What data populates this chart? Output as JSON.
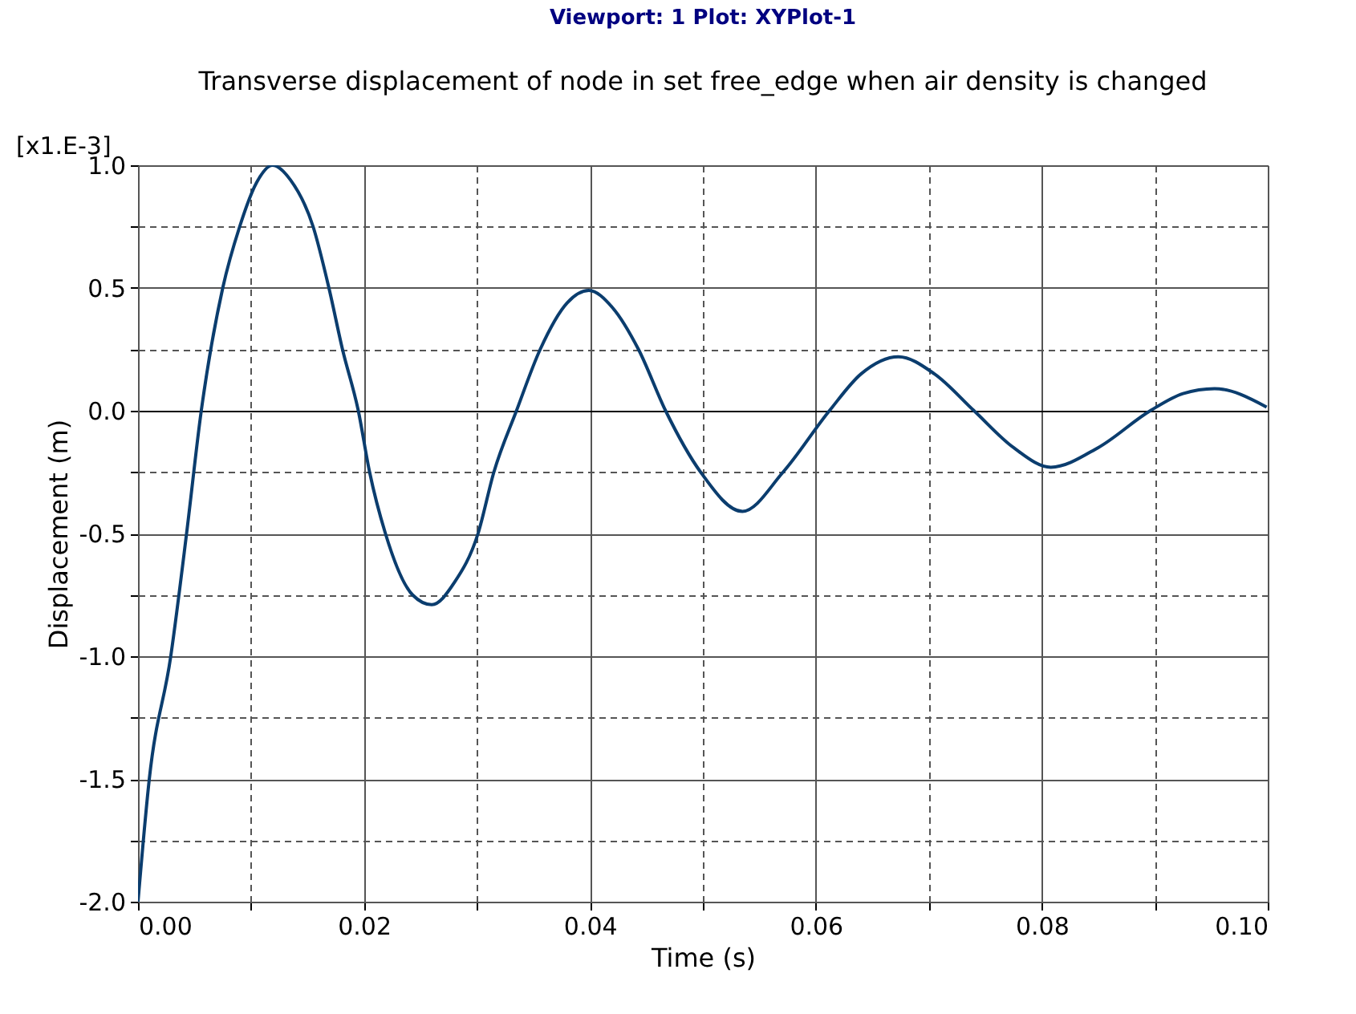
{
  "chart_data": {
    "type": "line",
    "title": "Transverse displacement of node in set free_edge when air density is changed",
    "xlabel": "Time (s)",
    "ylabel": "Displacement (m)",
    "annotations": [
      "Viewport: 1    Plot: XYPlot-1",
      "[x1.E-3]"
    ],
    "series": [
      {
        "color": "#0b3d6e",
        "x": [
          0,
          0.001,
          0.0029,
          0.0043,
          0.0056,
          0.0075,
          0.009,
          0.0105,
          0.0119,
          0.0135,
          0.0155,
          0.0169,
          0.0181,
          0.0195,
          0.0205,
          0.0219,
          0.0243,
          0.026,
          0.028,
          0.0301,
          0.0315,
          0.0335,
          0.0356,
          0.038,
          0.0399,
          0.042,
          0.0443,
          0.0467,
          0.0498,
          0.0535,
          0.0571,
          0.0612,
          0.064,
          0.0673,
          0.0705,
          0.074,
          0.0775,
          0.0808,
          0.085,
          0.0896,
          0.0925,
          0.0953,
          0.0999
        ],
        "values": [
          -2.0,
          -1.5,
          -1.0,
          -0.5,
          0.0,
          0.5,
          0.75,
          0.93,
          1.0,
          0.94,
          0.75,
          0.5,
          0.25,
          0.0,
          -0.25,
          -0.5,
          -0.75,
          -0.79,
          -0.7,
          -0.5,
          -0.25,
          0.0,
          0.25,
          0.44,
          0.49,
          0.42,
          0.25,
          0.0,
          -0.25,
          -0.41,
          -0.25,
          0.0,
          0.15,
          0.22,
          0.15,
          0.0,
          -0.15,
          -0.23,
          -0.15,
          0.0,
          0.07,
          0.09,
          0.015
        ]
      }
    ],
    "xlim": [
      0,
      0.1
    ],
    "xticks": [
      {
        "value": 0,
        "label": "0.00"
      },
      {
        "value": 0.01,
        "label": null
      },
      {
        "value": 0.02,
        "label": "0.02"
      },
      {
        "value": 0.03,
        "label": null
      },
      {
        "value": 0.04,
        "label": "0.04"
      },
      {
        "value": 0.05,
        "label": null
      },
      {
        "value": 0.06,
        "label": "0.06"
      },
      {
        "value": 0.07,
        "label": null
      },
      {
        "value": 0.08,
        "label": "0.08"
      },
      {
        "value": 0.09,
        "label": null
      },
      {
        "value": 0.1,
        "label": "0.10"
      }
    ],
    "ylim": [
      -2.0,
      1.0
    ],
    "yticks": [
      {
        "value": -2,
        "label": "-2.0"
      },
      {
        "value": -1.75,
        "label": null
      },
      {
        "value": -1.5,
        "label": "-1.5"
      },
      {
        "value": -1.25,
        "label": null
      },
      {
        "value": -1,
        "label": "-1.0"
      },
      {
        "value": -0.75,
        "label": null
      },
      {
        "value": -0.5,
        "label": "-0.5"
      },
      {
        "value": -0.25,
        "label": null
      },
      {
        "value": 0,
        "label": "0.0"
      },
      {
        "value": 0.25,
        "label": null
      },
      {
        "value": 0.5,
        "label": "0.5"
      },
      {
        "value": 0.75,
        "label": null
      },
      {
        "value": 1,
        "label": "1.0"
      }
    ],
    "grid": true,
    "marker": "none",
    "line_style": "solid"
  }
}
